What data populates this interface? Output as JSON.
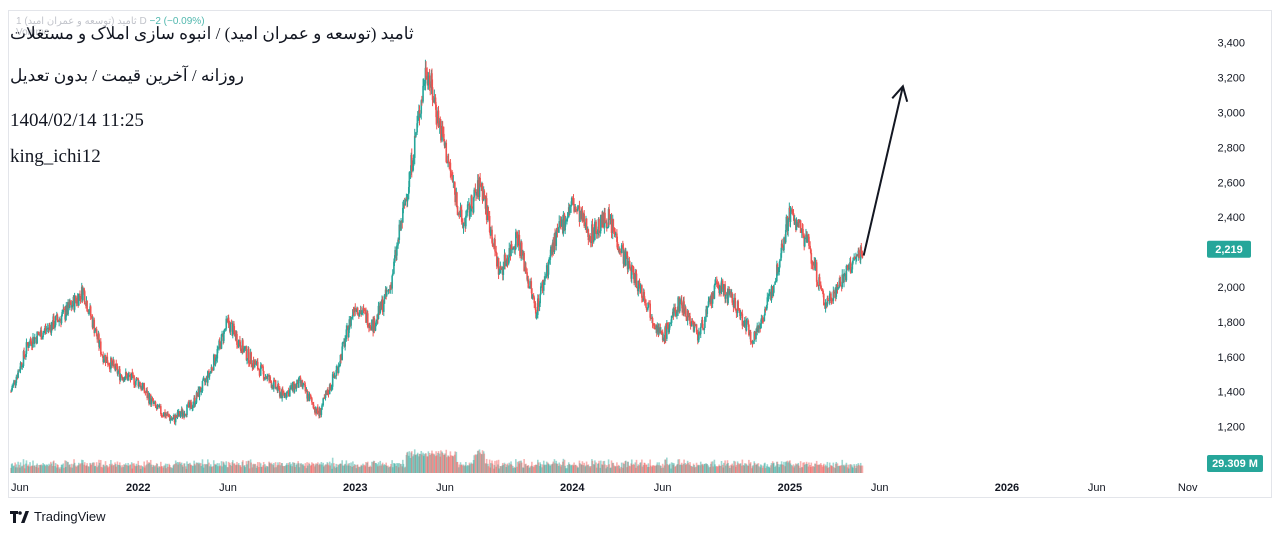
{
  "chart_data": {
    "type": "candlestick",
    "symbol_title": "ثامید (توسعه و عمران امید) / انبوه سازی املاک و مستغلات",
    "subtitle": "روزانه / آخرین قیمت / بدون تعدیل",
    "timestamp": "1404/02/14 11:25",
    "author": "king_ichi12",
    "ghost_legend": "1 ثامید (توسعه و عمران امید) D",
    "ghost_change": "−2 (−0.09%)",
    "ghost_volume": "Volume",
    "ylim": [
      1100,
      3450
    ],
    "y_ticks": [
      1200,
      1400,
      1600,
      1800,
      2000,
      2200,
      2400,
      2600,
      2800,
      3000,
      3200,
      3400
    ],
    "y_tick_labels": [
      "1,200",
      "1,400",
      "1,600",
      "1,800",
      "2,000",
      "2,200",
      "2,400",
      "2,600",
      "2,800",
      "3,000",
      "3,200",
      "3,400"
    ],
    "x_ticks": [
      "Jun",
      "2022",
      "Jun",
      "2023",
      "Jun",
      "2024",
      "Jun",
      "2025",
      "Jun",
      "2026",
      "Jun",
      "Nov"
    ],
    "time_range": [
      "2021-06",
      "2026-11"
    ],
    "last_price": 2219,
    "last_price_label": "2,219",
    "last_volume_label": "29.309 M",
    "up_color": "#26a69a",
    "down_color": "#ef5350",
    "price_path": [
      {
        "date": "2021-06-01",
        "price": 1400
      },
      {
        "date": "2021-07-01",
        "price": 1680
      },
      {
        "date": "2021-08-01",
        "price": 1760
      },
      {
        "date": "2021-09-01",
        "price": 1850
      },
      {
        "date": "2021-10-01",
        "price": 1980
      },
      {
        "date": "2021-11-01",
        "price": 1620
      },
      {
        "date": "2021-12-01",
        "price": 1500
      },
      {
        "date": "2022-01-01",
        "price": 1460
      },
      {
        "date": "2022-02-01",
        "price": 1300
      },
      {
        "date": "2022-03-01",
        "price": 1240
      },
      {
        "date": "2022-04-01",
        "price": 1320
      },
      {
        "date": "2022-05-01",
        "price": 1500
      },
      {
        "date": "2022-06-01",
        "price": 1800
      },
      {
        "date": "2022-07-01",
        "price": 1620
      },
      {
        "date": "2022-08-01",
        "price": 1500
      },
      {
        "date": "2022-09-01",
        "price": 1380
      },
      {
        "date": "2022-10-01",
        "price": 1450
      },
      {
        "date": "2022-11-01",
        "price": 1270
      },
      {
        "date": "2022-12-01",
        "price": 1520
      },
      {
        "date": "2023-01-01",
        "price": 1900
      },
      {
        "date": "2023-02-01",
        "price": 1780
      },
      {
        "date": "2023-03-01",
        "price": 2000
      },
      {
        "date": "2023-04-01",
        "price": 2600
      },
      {
        "date": "2023-05-01",
        "price": 3270
      },
      {
        "date": "2023-06-01",
        "price": 2800
      },
      {
        "date": "2023-07-01",
        "price": 2350
      },
      {
        "date": "2023-08-01",
        "price": 2600
      },
      {
        "date": "2023-09-01",
        "price": 2080
      },
      {
        "date": "2023-10-01",
        "price": 2300
      },
      {
        "date": "2023-11-01",
        "price": 1860
      },
      {
        "date": "2023-12-01",
        "price": 2250
      },
      {
        "date": "2024-01-01",
        "price": 2480
      },
      {
        "date": "2024-02-01",
        "price": 2300
      },
      {
        "date": "2024-03-01",
        "price": 2400
      },
      {
        "date": "2024-04-01",
        "price": 2150
      },
      {
        "date": "2024-05-01",
        "price": 1950
      },
      {
        "date": "2024-06-01",
        "price": 1700
      },
      {
        "date": "2024-07-01",
        "price": 1920
      },
      {
        "date": "2024-08-01",
        "price": 1720
      },
      {
        "date": "2024-09-01",
        "price": 2020
      },
      {
        "date": "2024-10-01",
        "price": 1900
      },
      {
        "date": "2024-11-01",
        "price": 1700
      },
      {
        "date": "2024-12-01",
        "price": 1960
      },
      {
        "date": "2025-01-01",
        "price": 2430
      },
      {
        "date": "2025-02-01",
        "price": 2250
      },
      {
        "date": "2025-03-01",
        "price": 1900
      },
      {
        "date": "2025-04-01",
        "price": 2050
      },
      {
        "date": "2025-05-04",
        "price": 2219
      }
    ],
    "annotation": {
      "type": "arrow",
      "from": {
        "date": "2025-05-05",
        "price": 2180
      },
      "to": {
        "date": "2025-07-10",
        "price": 3150
      }
    }
  }
}
